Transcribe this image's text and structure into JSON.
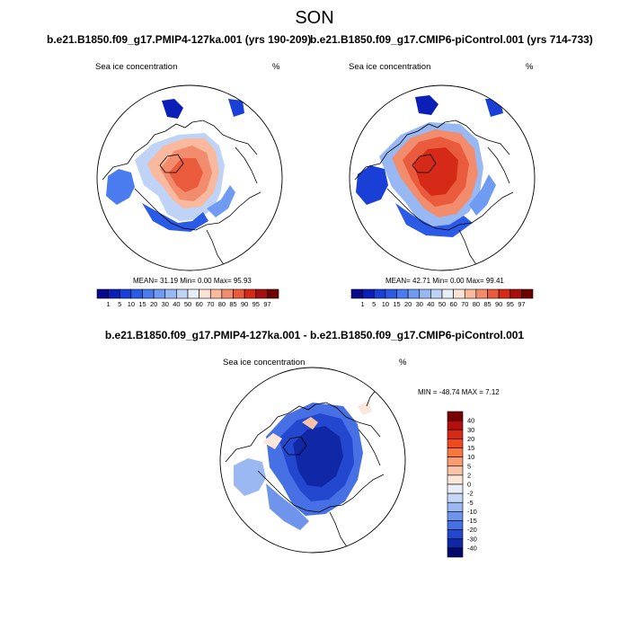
{
  "title": "SON",
  "panels": {
    "left": {
      "case": "b.e21.B1850.f09_g17.PMIP4-127ka.001 (yrs 190-209)",
      "variable": "Sea ice concentration",
      "units": "%",
      "stats": "MEAN=  31.19  Min=   0.00  Max=   95.93",
      "colorbar_labels": [
        "1",
        "5",
        "10",
        "15",
        "20",
        "30",
        "40",
        "50",
        "60",
        "70",
        "80",
        "85",
        "90",
        "95",
        "97"
      ]
    },
    "right": {
      "case": "b.e21.B1850.f09_g17.CMIP6-piControl.001 (yrs 714-733)",
      "variable": "Sea ice concentration",
      "units": "%",
      "stats": "MEAN=  42.71  Min=   0.00  Max=   99.41",
      "colorbar_labels": [
        "1",
        "5",
        "10",
        "15",
        "20",
        "30",
        "40",
        "50",
        "60",
        "70",
        "80",
        "85",
        "90",
        "95",
        "97"
      ]
    },
    "diff": {
      "case": "b.e21.B1850.f09_g17.PMIP4-127ka.001 - b.e21.B1850.f09_g17.CMIP6-piControl.001",
      "variable": "Sea ice concentration",
      "units": "%",
      "stats": "MIN = -48.74 MAX =   7.12",
      "colorbar_labels": [
        "40",
        "30",
        "20",
        "15",
        "10",
        "5",
        "2",
        "0",
        "-2",
        "-5",
        "-10",
        "-15",
        "-20",
        "-30",
        "-40"
      ]
    }
  },
  "colors": {
    "seq_scale": [
      "#08088c",
      "#0b1fb8",
      "#1a3fd6",
      "#2b5be6",
      "#4a7bef",
      "#6f9bf2",
      "#97b8f3",
      "#bed3f5",
      "#e8eef8",
      "#fbe2d6",
      "#f8b99e",
      "#f38c6c",
      "#ea5a3c",
      "#d62a18",
      "#a50f0f",
      "#6e0000"
    ],
    "div_scale": [
      "#7a0000",
      "#b30f0f",
      "#d62a18",
      "#ef4a1e",
      "#f8773f",
      "#fa9c72",
      "#f9c3aa",
      "#fbe6da",
      "#e8eef8",
      "#c6d6f5",
      "#9bb8f2",
      "#6f94ec",
      "#4670e4",
      "#2347cf",
      "#1028a6",
      "#030a6b"
    ]
  }
}
